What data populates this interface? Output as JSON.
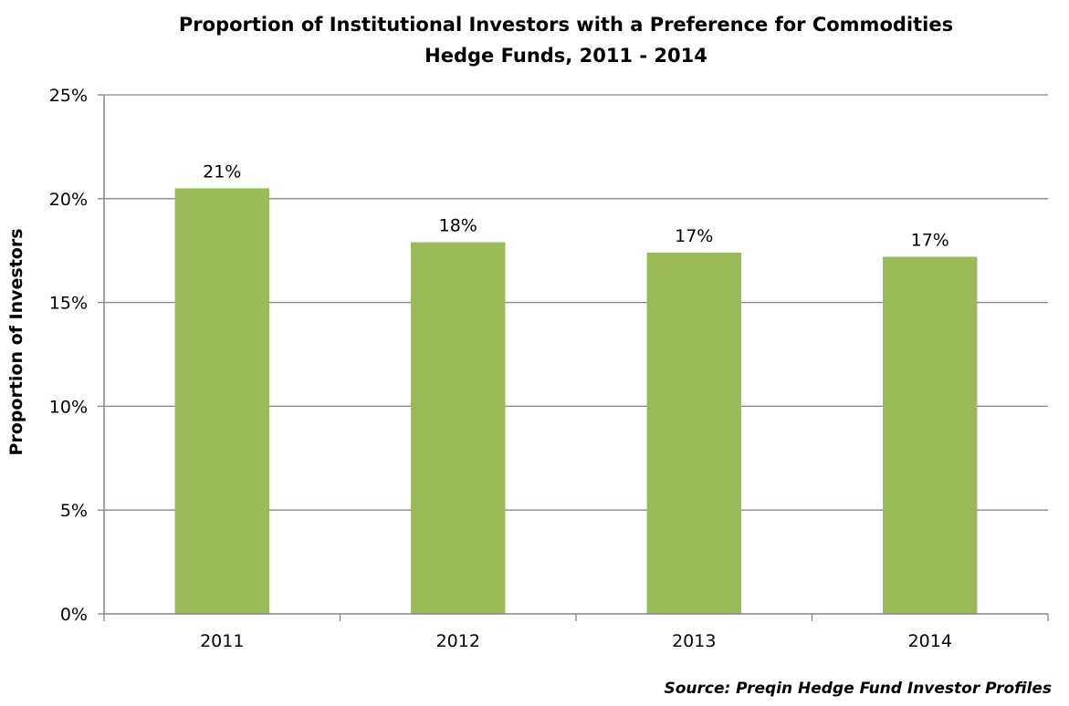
{
  "chart_data": {
    "type": "bar",
    "title": "Proportion of Institutional Investors with a Preference for Commodities",
    "subtitle": "Hedge Funds, 2011 - 2014",
    "xlabel": "",
    "ylabel": "Proportion of Investors",
    "categories": [
      "2011",
      "2012",
      "2013",
      "2014"
    ],
    "values": [
      20.5,
      17.9,
      17.4,
      17.2
    ],
    "data_labels": [
      "21%",
      "18%",
      "17%",
      "17%"
    ],
    "ylim": [
      0,
      25
    ],
    "yticks": [
      0,
      5,
      10,
      15,
      20,
      25
    ],
    "ytick_labels": [
      "0%",
      "5%",
      "10%",
      "15%",
      "20%",
      "25%"
    ],
    "grid": true,
    "legend": "none",
    "bar_color": "#9BBB59",
    "axis_color": "#868686",
    "source": "Source: Preqin Hedge Fund Investor Profiles"
  }
}
